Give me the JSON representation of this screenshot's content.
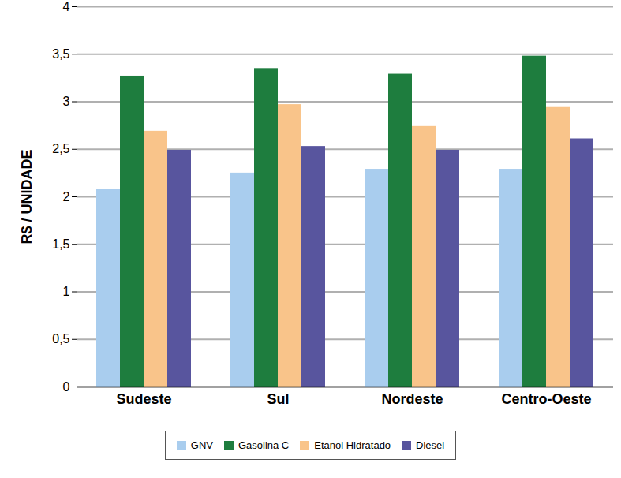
{
  "chart_data": {
    "type": "bar",
    "y_label": "R$ / UNIDADE",
    "categories": [
      "Sudeste",
      "Sul",
      "Nordeste",
      "Centro-Oeste"
    ],
    "series": [
      {
        "name": "GNV",
        "color": "#a9cdee",
        "values": [
          2.08,
          2.25,
          2.29,
          2.29
        ]
      },
      {
        "name": "Gasolina C",
        "color": "#1e7d3e",
        "values": [
          3.27,
          3.35,
          3.29,
          3.48
        ]
      },
      {
        "name": "Etanol Hidratado",
        "color": "#f9c48a",
        "values": [
          2.69,
          2.97,
          2.74,
          2.94
        ]
      },
      {
        "name": "Diesel",
        "color": "#58559e",
        "values": [
          2.49,
          2.53,
          2.49,
          2.61
        ]
      }
    ],
    "ylim": [
      0,
      4
    ],
    "yticks": [
      0,
      {
        "value": 0.5,
        "label": "0,5"
      },
      1,
      {
        "value": 1.5,
        "label": "1,5"
      },
      2,
      {
        "value": 2.5,
        "label": "2,5"
      },
      3,
      {
        "value": 3.5,
        "label": "3,5"
      },
      4
    ],
    "grid": true,
    "legend": "bottom"
  }
}
